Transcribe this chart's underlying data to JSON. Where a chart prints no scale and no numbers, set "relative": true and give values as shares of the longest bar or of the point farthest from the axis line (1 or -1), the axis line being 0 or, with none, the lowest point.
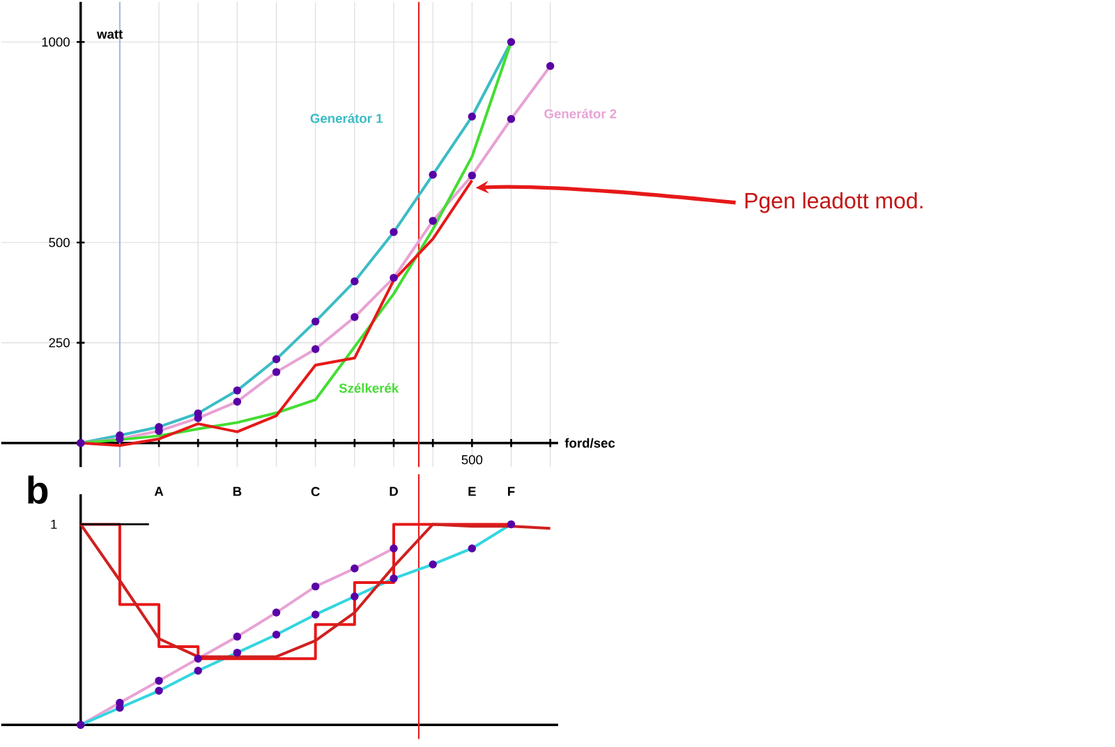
{
  "chart_data": [
    {
      "type": "line",
      "xlabel": "ford/sec",
      "ylabel": "watt",
      "ylim": [
        -60,
        1100
      ],
      "categories": [
        null,
        null,
        "A",
        null,
        "B",
        null,
        "C",
        null,
        "D",
        null,
        "E",
        "F",
        null
      ],
      "yticks": [
        250,
        500,
        1000
      ],
      "grid": true,
      "annotations": [
        {
          "text": "500",
          "x": "E"
        }
      ],
      "series": [
        {
          "name": "Generátor 1",
          "color": "#3cbcc4",
          "marker": "circle",
          "values": [
            0,
            19,
            40,
            74,
            131,
            209,
            303,
            403,
            526,
            669,
            814,
            1000,
            null
          ]
        },
        {
          "name": "Generátor 2",
          "color": "#e8a2d4",
          "marker": "circle",
          "values": [
            0,
            10,
            30,
            62,
            103,
            177,
            234,
            314,
            412,
            554,
            667,
            808,
            940
          ]
        },
        {
          "name": "Szélkerék",
          "color": "#44dd33",
          "values": [
            0,
            8,
            18,
            35,
            51,
            75,
            108,
            240,
            372,
            533,
            714,
            1000,
            null
          ]
        },
        {
          "name": "Pgen leadott mod.",
          "color": "#e61919",
          "values": [
            0,
            -6,
            10,
            48,
            28,
            68,
            194,
            212,
            406,
            509,
            655,
            null,
            null
          ]
        }
      ]
    },
    {
      "type": "line",
      "relative": true,
      "categories": [
        null,
        null,
        null,
        null,
        null,
        null,
        null,
        null,
        null,
        null,
        null,
        null,
        null
      ],
      "annotations": [
        "b",
        "1"
      ],
      "series": [
        {
          "color": "#e8a2d4",
          "marker": "circle",
          "values": [
            0,
            0.11,
            0.22,
            0.33,
            0.44,
            0.56,
            0.69,
            0.78,
            0.88,
            null,
            null,
            null,
            null
          ]
        },
        {
          "color": "#33d6e0",
          "marker": "circle",
          "values": [
            0,
            0.085,
            0.17,
            0.27,
            0.36,
            0.45,
            0.55,
            0.64,
            0.73,
            0.8,
            0.88,
            1.0,
            null
          ]
        },
        {
          "type": "step",
          "color": "#e61919",
          "values": [
            1,
            0.6,
            0.39,
            0.33,
            0.33,
            0.33,
            0.5,
            0.71,
            1,
            1,
            1,
            1,
            null
          ]
        },
        {
          "color": "#d02020",
          "values": [
            1,
            0.72,
            0.43,
            0.34,
            0.34,
            0.34,
            0.42,
            0.56,
            0.79,
            1,
            0.99,
            0.99,
            0.98
          ]
        }
      ]
    }
  ]
}
